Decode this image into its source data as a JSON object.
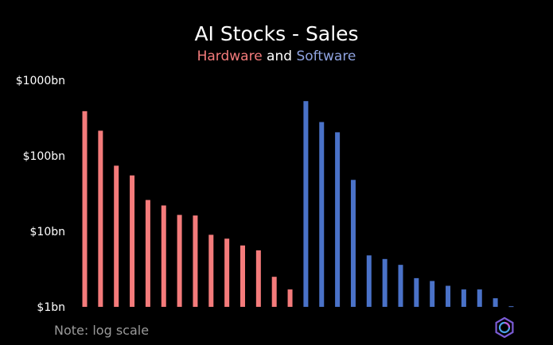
{
  "title": "AI Stocks - Sales",
  "subtitle": {
    "part1": "Hardware",
    "part2": " and ",
    "part3": "Software"
  },
  "note": "Note: log scale",
  "colors": {
    "hardware": "#f47b7b",
    "software": "#4a72c8",
    "software_text": "#8fa3e0",
    "background": "#000000"
  },
  "chart_data": {
    "type": "bar",
    "yscale": "log",
    "ylim": [
      1,
      1000
    ],
    "yticks": [
      {
        "value": 1,
        "label": "$1bn"
      },
      {
        "value": 10,
        "label": "$10bn"
      },
      {
        "value": 100,
        "label": "$100bn"
      },
      {
        "value": 1000,
        "label": "$1000bn"
      }
    ],
    "grid": false,
    "series": [
      {
        "name": "Hardware",
        "color": "#f47b7b",
        "values": [
          390,
          215,
          74,
          55,
          26,
          22,
          16.5,
          16.2,
          9,
          8,
          6.5,
          5.6,
          2.5,
          1.7
        ]
      },
      {
        "name": "Software",
        "color": "#4a72c8",
        "values": [
          530,
          280,
          205,
          48,
          4.8,
          4.3,
          3.6,
          2.4,
          2.2,
          1.9,
          1.7,
          1.7,
          1.3,
          1.02
        ]
      }
    ]
  },
  "logo": {
    "icon": "hexagon-swirl-logo"
  }
}
